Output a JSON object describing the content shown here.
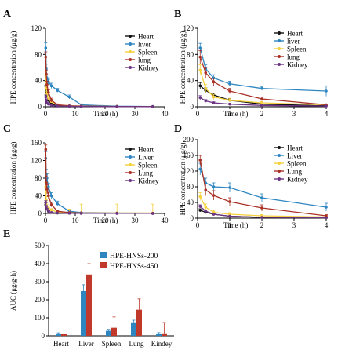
{
  "colors": {
    "heart": "#111111",
    "liver": "#2e86c1",
    "spleen": "#f4d03f",
    "lung": "#a93226",
    "kidney": "#6c3483",
    "axis": "#000000"
  },
  "chart_data": [
    {
      "panel": "A",
      "type": "line",
      "xlabel": "Time (h)",
      "ylabel": "HPE concentration  (μg/g)",
      "xlim": [
        0,
        40
      ],
      "ylim": [
        0,
        120
      ],
      "xticks": [
        0,
        10,
        20,
        30,
        40
      ],
      "yticks": [
        0,
        40,
        80,
        120
      ],
      "xtick_labels": [
        "0",
        "10",
        "20",
        "30",
        "40"
      ],
      "ytick_labels": [
        "0",
        "40",
        "80",
        "120"
      ],
      "legend_position": "top-right",
      "series": [
        {
          "name": "Heart",
          "color_key": "heart",
          "x": [
            0.08,
            0.25,
            0.5,
            1,
            2,
            4,
            8,
            12,
            24,
            36
          ],
          "y": [
            32,
            25,
            18,
            10,
            4,
            1.5,
            1,
            0.8,
            0.5,
            0.3
          ],
          "err": [
            6,
            4,
            3,
            2,
            1,
            0.5,
            0.3,
            0.2,
            0.1,
            0.1
          ]
        },
        {
          "name": "liver",
          "color_key": "liver",
          "x": [
            0.08,
            0.25,
            0.5,
            1,
            2,
            4,
            8,
            12,
            24,
            36
          ],
          "y": [
            90,
            58,
            44,
            38,
            32,
            25,
            15,
            3,
            0.8,
            0.5
          ],
          "err": [
            8,
            7,
            5,
            4,
            4,
            3,
            3,
            1,
            0.3,
            0.2
          ]
        },
        {
          "name": "Spleen",
          "color_key": "spleen",
          "x": [
            0.08,
            0.25,
            0.5,
            1,
            2,
            4,
            8,
            12,
            24,
            36
          ],
          "y": [
            48,
            28,
            20,
            12,
            8,
            3,
            1.5,
            1,
            0.5,
            0.3
          ],
          "err": [
            6,
            4,
            3,
            2,
            2,
            1,
            0.5,
            0.3,
            0.2,
            0.1
          ]
        },
        {
          "name": "lung",
          "color_key": "lung",
          "x": [
            0.08,
            0.25,
            0.5,
            1,
            2,
            4,
            8,
            12,
            24,
            36
          ],
          "y": [
            76,
            50,
            34,
            22,
            10,
            3,
            1.5,
            1,
            0.5,
            0.3
          ],
          "err": [
            8,
            6,
            5,
            4,
            3,
            1,
            0.5,
            0.3,
            0.2,
            0.1
          ]
        },
        {
          "name": "Kidney",
          "color_key": "kidney",
          "x": [
            0.08,
            0.25,
            0.5,
            1,
            2,
            4,
            8,
            12,
            24,
            36
          ],
          "y": [
            15,
            10,
            6,
            4,
            2,
            1,
            0.8,
            0.5,
            0.3,
            0.2
          ],
          "err": [
            3,
            2,
            1,
            1,
            0.5,
            0.3,
            0.2,
            0.1,
            0.1,
            0.1
          ]
        }
      ]
    },
    {
      "panel": "B",
      "type": "line",
      "xlabel": "Time (h)",
      "ylabel": "HPE concentration (μg/g)",
      "xlim": [
        0,
        4
      ],
      "ylim": [
        0,
        120
      ],
      "xticks": [
        0,
        1,
        2,
        3,
        4
      ],
      "yticks": [
        0,
        40,
        80,
        120
      ],
      "xtick_labels": [
        "0",
        "1",
        "2",
        "3",
        "4"
      ],
      "ytick_labels": [
        "0",
        "40",
        "80",
        "120"
      ],
      "legend_position": "top-right",
      "series": [
        {
          "name": "Heart",
          "color_key": "heart",
          "x": [
            0.08,
            0.25,
            0.5,
            1,
            2,
            4
          ],
          "y": [
            32,
            25,
            18,
            10,
            4,
            1.5
          ],
          "err": [
            5,
            4,
            3,
            2,
            1,
            0.5
          ]
        },
        {
          "name": "liver",
          "color_key": "liver",
          "x": [
            0.08,
            0.25,
            0.5,
            1,
            2,
            4
          ],
          "y": [
            90,
            58,
            44,
            35,
            28,
            24
          ],
          "err": [
            7,
            6,
            5,
            4,
            3,
            8
          ]
        },
        {
          "name": "Spleen",
          "color_key": "spleen",
          "x": [
            0.08,
            0.25,
            0.5,
            1,
            2,
            4
          ],
          "y": [
            56,
            28,
            15,
            10,
            6,
            3
          ],
          "err": [
            8,
            6,
            4,
            3,
            2,
            1
          ]
        },
        {
          "name": "lung",
          "color_key": "lung",
          "x": [
            0.08,
            0.25,
            0.5,
            1,
            2,
            4
          ],
          "y": [
            76,
            52,
            38,
            24,
            12,
            3
          ],
          "err": [
            10,
            8,
            6,
            4,
            3,
            1
          ]
        },
        {
          "name": "Kidney",
          "color_key": "kidney",
          "x": [
            0.08,
            0.25,
            0.5,
            1,
            2,
            4
          ],
          "y": [
            14,
            9,
            6,
            4,
            2,
            1
          ],
          "err": [
            3,
            2,
            1.5,
            1,
            0.5,
            0.3
          ]
        }
      ]
    },
    {
      "panel": "C",
      "type": "line",
      "xlabel": "Time (h)",
      "ylabel": "HPE concentration  (μg/g)",
      "xlim": [
        0,
        40
      ],
      "ylim": [
        0,
        160
      ],
      "xticks": [
        0,
        10,
        20,
        30,
        40
      ],
      "yticks": [
        0,
        40,
        80,
        120,
        160
      ],
      "xtick_labels": [
        "0",
        "10",
        "20",
        "30",
        "40"
      ],
      "ytick_labels": [
        "0",
        "40",
        "80",
        "120",
        "160"
      ],
      "legend_position": "top-right",
      "series": [
        {
          "name": "Heart",
          "color_key": "heart",
          "x": [
            0.08,
            0.25,
            0.5,
            1,
            2,
            4,
            8,
            12,
            24,
            36
          ],
          "y": [
            20,
            15,
            10,
            5,
            2,
            1,
            0.5,
            0.3,
            0.2,
            0.1
          ],
          "err": [
            4,
            3,
            2,
            1,
            0.5,
            0.3,
            0.2,
            0.1,
            0.1,
            0.1
          ]
        },
        {
          "name": "Liver",
          "color_key": "liver",
          "x": [
            0.08,
            0.25,
            0.5,
            1,
            2,
            4,
            8,
            12,
            24,
            36
          ],
          "y": [
            125,
            88,
            80,
            60,
            40,
            22,
            5,
            2,
            1,
            0.5
          ],
          "err": [
            15,
            12,
            10,
            8,
            7,
            6,
            2,
            1,
            0.5,
            0.3
          ]
        },
        {
          "name": "Spleen",
          "color_key": "spleen",
          "x": [
            0.08,
            0.25,
            0.5,
            1,
            2,
            4,
            8,
            12,
            24,
            36
          ],
          "y": [
            60,
            30,
            15,
            10,
            8,
            3,
            2,
            1,
            1,
            1
          ],
          "err": [
            10,
            8,
            6,
            4,
            3,
            2,
            8,
            20,
            20,
            20
          ]
        },
        {
          "name": "Lung",
          "color_key": "lung",
          "x": [
            0.08,
            0.25,
            0.5,
            1,
            2,
            4,
            8,
            12,
            24,
            36
          ],
          "y": [
            145,
            70,
            55,
            40,
            20,
            5,
            2,
            1,
            0.5,
            0.3
          ],
          "err": [
            10,
            15,
            10,
            8,
            5,
            2,
            1,
            0.5,
            0.3,
            0.2
          ]
        },
        {
          "name": "Kidney",
          "color_key": "kidney",
          "x": [
            0.08,
            0.25,
            0.5,
            1,
            2,
            4,
            8,
            12,
            24,
            36
          ],
          "y": [
            25,
            15,
            10,
            5,
            2,
            1,
            0.5,
            0.3,
            0.2,
            0.1
          ],
          "err": [
            4,
            3,
            2,
            1,
            0.5,
            0.3,
            0.2,
            0.1,
            0.1,
            0.1
          ]
        }
      ]
    },
    {
      "panel": "D",
      "type": "line",
      "xlabel": "Time (h)",
      "ylabel": "HPE concentration (μg/g)",
      "xlim": [
        0,
        4
      ],
      "ylim": [
        0,
        200
      ],
      "xticks": [
        0,
        1,
        2,
        3,
        4
      ],
      "yticks": [
        0,
        40,
        80,
        120,
        160,
        200
      ],
      "xtick_labels": [
        "0",
        "1",
        "2",
        "3",
        "4"
      ],
      "ytick_labels": [
        "0",
        "40",
        "80",
        "120",
        "160",
        "200"
      ],
      "legend_position": "top-right",
      "series": [
        {
          "name": "Heart",
          "color_key": "heart",
          "x": [
            0.08,
            0.25,
            0.5,
            1,
            2,
            4
          ],
          "y": [
            20,
            15,
            10,
            5,
            2,
            1
          ],
          "err": [
            4,
            3,
            2,
            1,
            0.5,
            0.3
          ]
        },
        {
          "name": "Liver",
          "color_key": "liver",
          "x": [
            0.08,
            0.25,
            0.5,
            1,
            2,
            4
          ],
          "y": [
            125,
            90,
            80,
            78,
            52,
            28
          ],
          "err": [
            15,
            12,
            10,
            12,
            10,
            10
          ]
        },
        {
          "name": "Spleen",
          "color_key": "spleen",
          "x": [
            0.08,
            0.25,
            0.5,
            1,
            2,
            4
          ],
          "y": [
            55,
            28,
            15,
            10,
            6,
            3
          ],
          "err": [
            10,
            8,
            5,
            4,
            3,
            2
          ]
        },
        {
          "name": "Lung",
          "color_key": "lung",
          "x": [
            0.08,
            0.25,
            0.5,
            1,
            2,
            4
          ],
          "y": [
            148,
            72,
            58,
            42,
            26,
            6
          ],
          "err": [
            12,
            15,
            12,
            10,
            8,
            3
          ]
        },
        {
          "name": "Kidney",
          "color_key": "kidney",
          "x": [
            0.08,
            0.25,
            0.5,
            1,
            2,
            4
          ],
          "y": [
            30,
            18,
            10,
            5,
            2,
            1
          ],
          "err": [
            4,
            3,
            2,
            1,
            0.5,
            0.3
          ]
        }
      ]
    },
    {
      "panel": "E",
      "type": "bar",
      "ylabel": "AUC (μg/g·h)",
      "ylim": [
        0,
        500
      ],
      "yticks": [
        0,
        100,
        200,
        300,
        400,
        500
      ],
      "ytick_labels": [
        "0",
        "100",
        "200",
        "300",
        "400",
        "500"
      ],
      "categories": [
        "Heart",
        "Liver",
        "Spleen",
        "Lung",
        "Kindey"
      ],
      "legend_position": "top-right",
      "series": [
        {
          "name": "HPE-HNSs-200",
          "color": "#2e86c1",
          "values": [
            12,
            248,
            28,
            75,
            13
          ],
          "err": [
            5,
            35,
            8,
            12,
            5
          ]
        },
        {
          "name": "HPE-HNSs-450",
          "color": "#c0392b",
          "values": [
            10,
            340,
            45,
            145,
            14
          ],
          "err": [
            62,
            60,
            60,
            60,
            60
          ]
        }
      ]
    }
  ]
}
